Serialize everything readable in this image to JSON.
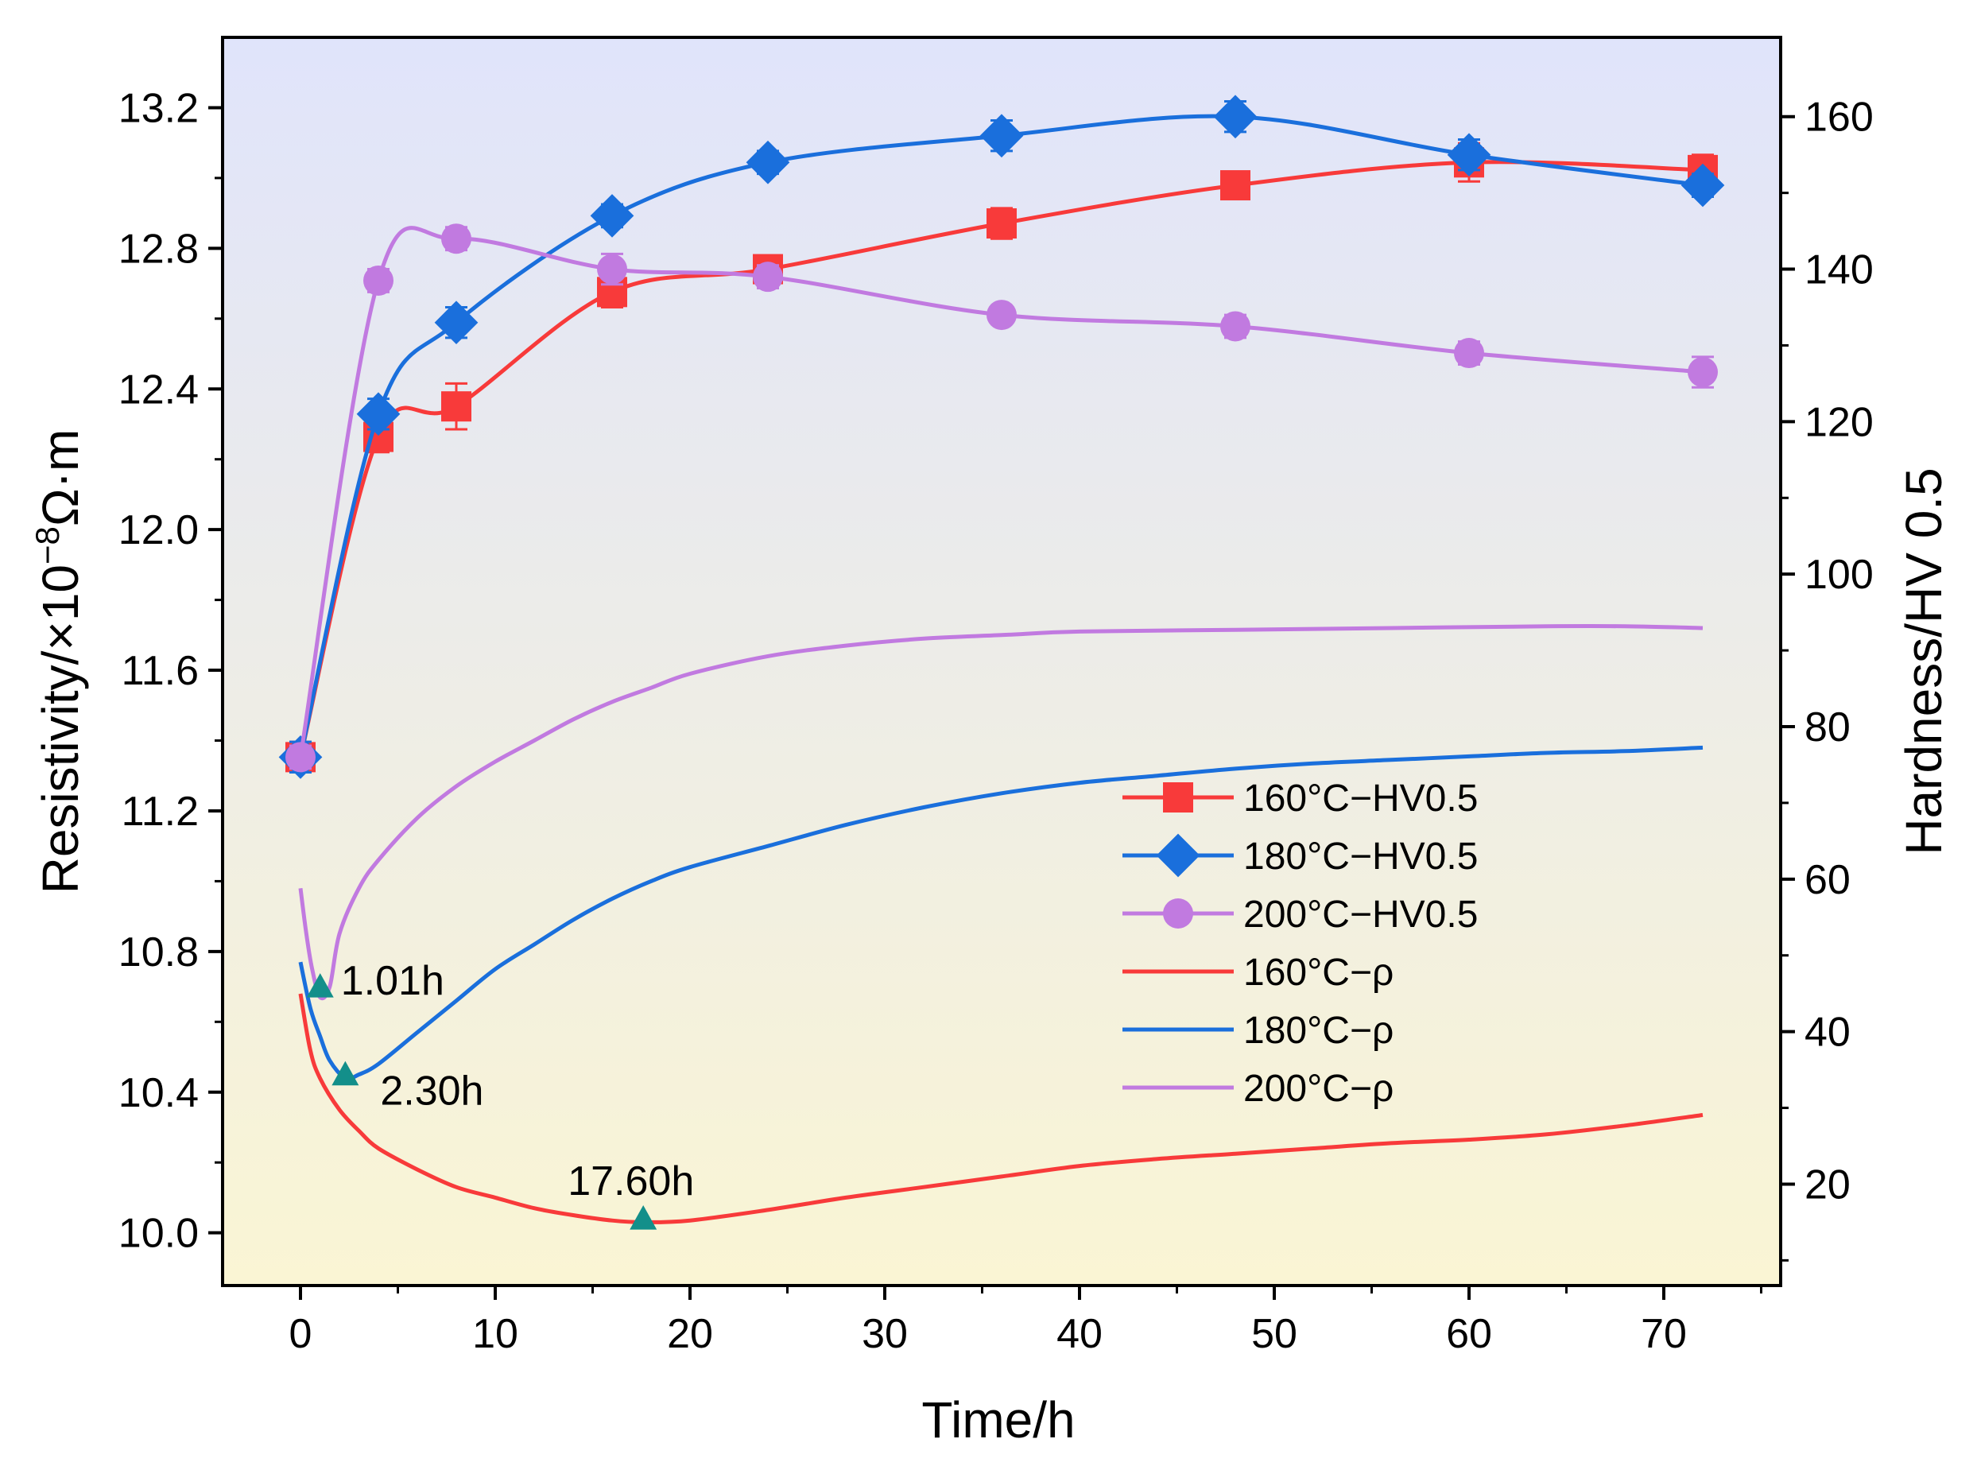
{
  "chart_data": {
    "type": "line",
    "x_axis": {
      "label": "Time/h",
      "range": [
        -4,
        76
      ],
      "ticks": [
        0,
        10,
        20,
        30,
        40,
        50,
        60,
        70
      ],
      "tick_labels": [
        "0",
        "10",
        "20",
        "30",
        "40",
        "50",
        "60",
        "70"
      ]
    },
    "y_left": {
      "label_base": "Resistivity/×10",
      "label_exp": "−8",
      "label_unit": "Ω·m",
      "range": [
        9.85,
        13.4
      ],
      "ticks": [
        10.0,
        10.4,
        10.8,
        11.2,
        11.6,
        12.0,
        12.4,
        12.8,
        13.2
      ],
      "tick_labels": [
        "10.0",
        "10.4",
        "10.8",
        "11.2",
        "11.6",
        "12.0",
        "12.4",
        "12.8",
        "13.2"
      ]
    },
    "y_right": {
      "label": "Hardness/HV 0.5",
      "range": [
        6.7,
        170.4
      ],
      "ticks": [
        20,
        40,
        60,
        80,
        100,
        120,
        140,
        160
      ],
      "tick_labels": [
        "20",
        "40",
        "60",
        "80",
        "100",
        "120",
        "140",
        "160"
      ]
    },
    "background_gradient": [
      "#e0e4fb",
      "#faf5d4"
    ],
    "hardness_series": [
      {
        "name": "160°C−HV0.5",
        "color": "#f83a3a",
        "marker": "square",
        "axis": "right",
        "x": [
          0,
          4,
          8,
          16,
          24,
          36,
          48,
          60,
          72
        ],
        "y": [
          76,
          118,
          122,
          137,
          140,
          146,
          151,
          154,
          153
        ],
        "err": [
          2,
          2,
          3,
          2,
          1.5,
          2,
          1,
          2.5,
          2
        ]
      },
      {
        "name": "180°C−HV0.5",
        "color": "#1a6fdc",
        "marker": "diamond",
        "axis": "right",
        "x": [
          0,
          4,
          8,
          16,
          24,
          36,
          48,
          60,
          72
        ],
        "y": [
          76,
          121,
          133,
          147,
          154,
          157.5,
          160,
          155,
          151
        ],
        "err": [
          2,
          2,
          2,
          1.5,
          1.5,
          2,
          2,
          2,
          1.5
        ]
      },
      {
        "name": "200°C−HV0.5",
        "color": "#c17ae0",
        "marker": "circle",
        "axis": "right",
        "x": [
          0,
          4,
          8,
          16,
          24,
          36,
          48,
          60,
          72
        ],
        "y": [
          76,
          138.5,
          144,
          140,
          139,
          134,
          132.5,
          129,
          126.5
        ],
        "err": [
          1.5,
          1.5,
          1.5,
          2,
          1.5,
          1,
          1.5,
          1.5,
          2
        ]
      }
    ],
    "resistivity_series": [
      {
        "name": "160°C−ρ",
        "color": "#f83a3a",
        "axis": "left",
        "x": [
          0,
          0.5,
          1,
          2,
          3,
          4,
          6,
          8,
          10,
          12,
          14,
          16,
          17.6,
          20,
          24,
          28,
          32,
          36,
          40,
          44,
          48,
          52,
          56,
          60,
          64,
          68,
          72
        ],
        "y": [
          10.68,
          10.52,
          10.44,
          10.35,
          10.29,
          10.24,
          10.18,
          10.13,
          10.1,
          10.07,
          10.05,
          10.035,
          10.03,
          10.035,
          10.065,
          10.1,
          10.13,
          10.16,
          10.19,
          10.21,
          10.225,
          10.24,
          10.255,
          10.265,
          10.28,
          10.305,
          10.335
        ]
      },
      {
        "name": "180°C−ρ",
        "color": "#1a6fdc",
        "axis": "left",
        "x": [
          0,
          0.5,
          1,
          1.5,
          2.3,
          3,
          4,
          6,
          8,
          10,
          12,
          14,
          16,
          18,
          20,
          24,
          28,
          32,
          36,
          40,
          44,
          48,
          52,
          56,
          60,
          64,
          68,
          72
        ],
        "y": [
          10.77,
          10.64,
          10.56,
          10.49,
          10.44,
          10.45,
          10.48,
          10.57,
          10.66,
          10.75,
          10.82,
          10.89,
          10.95,
          11.0,
          11.04,
          11.1,
          11.16,
          11.21,
          11.25,
          11.28,
          11.3,
          11.32,
          11.335,
          11.345,
          11.355,
          11.365,
          11.37,
          11.38
        ]
      },
      {
        "name": "200°C−ρ",
        "color": "#c17ae0",
        "axis": "left",
        "x": [
          0,
          0.3,
          0.6,
          1,
          1.5,
          2,
          3,
          4,
          6,
          8,
          10,
          12,
          14,
          16,
          18,
          20,
          24,
          28,
          32,
          36,
          40,
          48,
          56,
          64,
          68,
          72
        ],
        "y": [
          10.98,
          10.85,
          10.75,
          10.67,
          10.7,
          10.85,
          10.98,
          11.06,
          11.18,
          11.27,
          11.34,
          11.4,
          11.46,
          11.51,
          11.55,
          11.59,
          11.64,
          11.67,
          11.69,
          11.7,
          11.71,
          11.715,
          11.72,
          11.725,
          11.725,
          11.72
        ]
      }
    ],
    "annotations": [
      {
        "label": "1.01h",
        "x": 1.01,
        "y": 10.7
      },
      {
        "label": "2.30h",
        "x": 2.3,
        "y": 10.45
      },
      {
        "label": "17.60h",
        "x": 17.6,
        "y": 10.04
      }
    ],
    "annotation_marker_color": "#138f8a",
    "legend": {
      "position": "lower-right",
      "entries": [
        "160°C−HV0.5",
        "180°C−HV0.5",
        "200°C−HV0.5",
        "160°C−ρ",
        "180°C−ρ",
        "200°C−ρ"
      ]
    }
  }
}
